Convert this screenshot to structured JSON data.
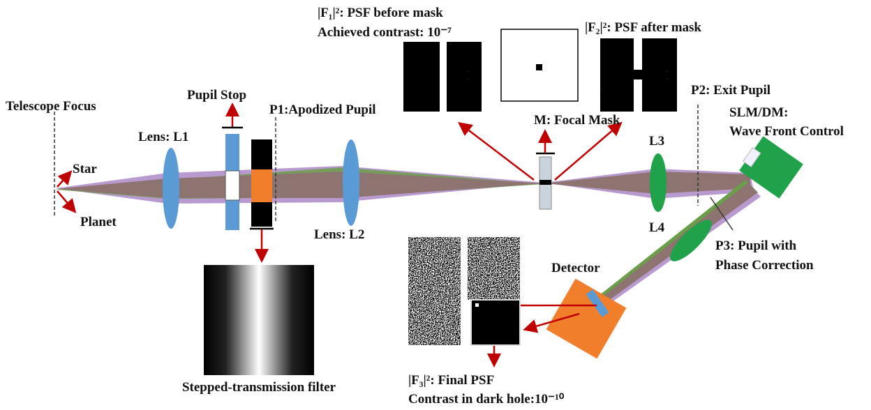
{
  "labels": {
    "telescope_focus": "Telescope Focus",
    "star": "Star",
    "planet": "Planet",
    "lens_l1": "Lens: L1",
    "pupil_stop": "Pupil Stop",
    "p1": "P1:Apodized Pupil",
    "lens_l2": "Lens: L2",
    "filter": "Stepped-transmission filter",
    "psf_before": "|F₁|²: PSF before mask",
    "achieved_contrast": "Achieved contrast:  10⁻⁷",
    "focal_mask": "M:  Focal Mask",
    "psf_after": "|F₂|²: PSF after mask",
    "p2": "P2: Exit Pupil",
    "slm_1": "SLM/DM:",
    "slm_2": "Wave Front Control",
    "l3": "L3",
    "l4": "L4",
    "p3_1": "P3: Pupil with",
    "p3_2": "Phase Correction",
    "detector": "Detector",
    "final_psf": "|F₃|²: Final PSF",
    "dark_hole": "Contrast in dark hole:10⁻¹⁰"
  }
}
